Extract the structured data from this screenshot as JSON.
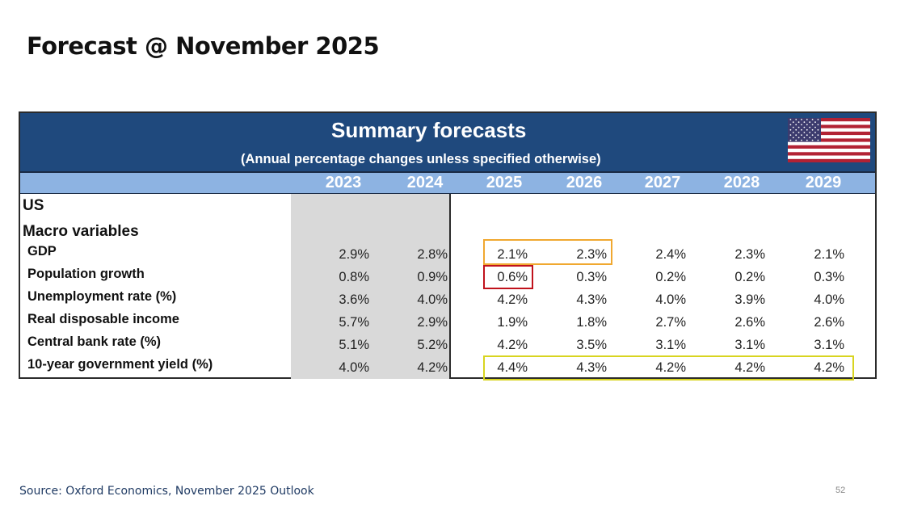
{
  "slide": {
    "title": "Forecast @ November 2025",
    "source": "Source: Oxford Economics, November 2025 Outlook",
    "page_number": "52"
  },
  "table": {
    "title": "Summary forecasts",
    "subtitle": "(Annual percentage changes unless specified otherwise)",
    "flag_icon": "us-flag-icon",
    "years": [
      "2023",
      "2024",
      "2025",
      "2026",
      "2027",
      "2028",
      "2029"
    ],
    "country": "US",
    "section": "Macro variables",
    "rows": [
      {
        "label": "GDP",
        "values": [
          "2.9%",
          "2.8%",
          "2.1%",
          "2.3%",
          "2.4%",
          "2.3%",
          "2.1%"
        ]
      },
      {
        "label": "Population growth",
        "values": [
          "0.8%",
          "0.9%",
          "0.6%",
          "0.3%",
          "0.2%",
          "0.2%",
          "0.3%"
        ]
      },
      {
        "label": "Unemployment rate (%)",
        "values": [
          "3.6%",
          "4.0%",
          "4.2%",
          "4.3%",
          "4.0%",
          "3.9%",
          "4.0%"
        ]
      },
      {
        "label": "Real disposable income",
        "values": [
          "5.7%",
          "2.9%",
          "1.9%",
          "1.8%",
          "2.7%",
          "2.6%",
          "2.6%"
        ]
      },
      {
        "label": "Central bank rate (%)",
        "values": [
          "5.1%",
          "5.2%",
          "4.2%",
          "3.5%",
          "3.1%",
          "3.1%",
          "3.1%"
        ]
      },
      {
        "label": "10-year government yield (%)",
        "values": [
          "4.0%",
          "4.2%",
          "4.4%",
          "4.3%",
          "4.2%",
          "4.2%",
          "4.2%"
        ]
      }
    ],
    "highlights": [
      {
        "name": "gdp-2025-2026-highlight",
        "row": "GDP",
        "years": [
          "2025",
          "2026"
        ],
        "color": "#f0a830"
      },
      {
        "name": "population-2025-highlight",
        "row": "Population growth",
        "years": [
          "2025"
        ],
        "color": "#c0121c"
      },
      {
        "name": "yield-forecast-highlight",
        "row": "10-year government yield (%)",
        "years": [
          "2025",
          "2026",
          "2027",
          "2028",
          "2029"
        ],
        "color": "#d8d420"
      }
    ]
  },
  "colors": {
    "banner": "#1f497d",
    "year_bar": "#8db3e2",
    "historical_band": "#d9d9d9"
  }
}
